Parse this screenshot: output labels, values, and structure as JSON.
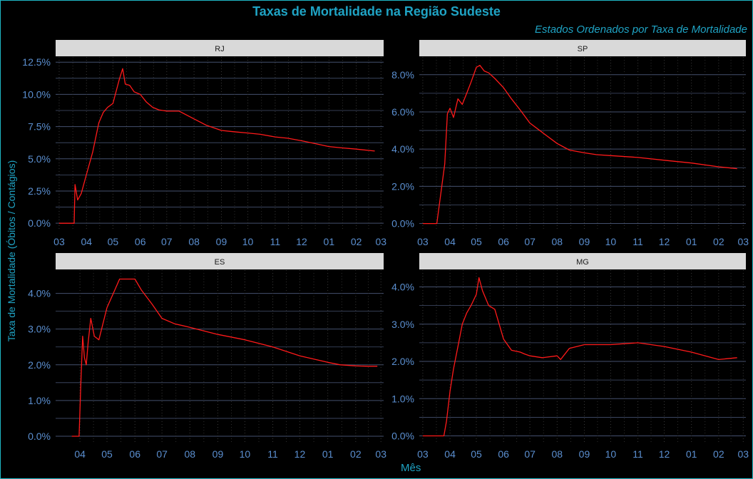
{
  "title": "Taxas de Mortalidade na Região Sudeste",
  "subtitle": "Estados Ordenados por Taxa de Mortalidade",
  "xlabel": "Mês",
  "ylabel": "Taxa de Mortalidade (Óbitos / Contágios)",
  "colors": {
    "background": "#000000",
    "frame": "#1fb7c4",
    "title": "#1fa3c4",
    "strip_bg": "#d9d9d9",
    "strip_text": "#1a1a1a",
    "grid_major": "#44506e",
    "grid_minor": "#3a3a3a",
    "tick_label": "#5b8fd0",
    "line": "#ff1a1a"
  },
  "chart_data": [
    {
      "type": "line",
      "panel": "RJ",
      "x_tick_labels": [
        "03",
        "04",
        "05",
        "06",
        "07",
        "08",
        "09",
        "10",
        "11",
        "12",
        "01",
        "02",
        "03"
      ],
      "x_tick_positions": [
        "2020-03-01",
        "2020-04-01",
        "2020-05-01",
        "2020-06-01",
        "2020-07-01",
        "2020-08-01",
        "2020-09-01",
        "2020-10-01",
        "2020-11-01",
        "2020-12-01",
        "2021-01-01",
        "2021-02-01",
        "2021-03-01"
      ],
      "x_range": [
        "2020-02-26",
        "2021-03-04"
      ],
      "y_ticks": [
        0,
        2.5,
        5,
        7.5,
        10,
        12.5
      ],
      "y_tick_labels": [
        "0.0%",
        "2.5%",
        "5.0%",
        "7.5%",
        "10.0%",
        "12.5%"
      ],
      "ylim": [
        -0.6,
        12.9
      ],
      "grid": true,
      "series": [
        {
          "x": [
            "2020-03-01",
            "2020-03-18",
            "2020-03-19",
            "2020-03-22",
            "2020-03-26",
            "2020-04-01",
            "2020-04-08",
            "2020-04-15",
            "2020-04-20",
            "2020-04-25",
            "2020-05-01",
            "2020-05-08",
            "2020-05-12",
            "2020-05-15",
            "2020-05-20",
            "2020-05-25",
            "2020-06-01",
            "2020-06-08",
            "2020-06-15",
            "2020-06-22",
            "2020-07-01",
            "2020-07-15",
            "2020-08-01",
            "2020-08-15",
            "2020-09-01",
            "2020-09-15",
            "2020-10-01",
            "2020-10-15",
            "2020-11-01",
            "2020-11-15",
            "2020-12-01",
            "2020-12-15",
            "2021-01-01",
            "2021-01-15",
            "2021-02-01",
            "2021-02-15",
            "2021-02-22"
          ],
          "y": [
            0,
            0,
            3.0,
            1.8,
            2.3,
            3.8,
            5.5,
            7.8,
            8.6,
            9.0,
            9.3,
            11.1,
            12.0,
            10.8,
            10.7,
            10.2,
            10.0,
            9.4,
            9.0,
            8.8,
            8.7,
            8.7,
            8.1,
            7.6,
            7.2,
            7.1,
            7.0,
            6.9,
            6.7,
            6.6,
            6.4,
            6.2,
            5.95,
            5.85,
            5.75,
            5.65,
            5.6
          ]
        }
      ]
    },
    {
      "type": "line",
      "panel": "SP",
      "x_tick_labels": [
        "03",
        "04",
        "05",
        "06",
        "07",
        "08",
        "09",
        "10",
        "11",
        "12",
        "01",
        "02",
        "03"
      ],
      "x_tick_positions": [
        "2020-03-01",
        "2020-04-01",
        "2020-05-01",
        "2020-06-01",
        "2020-07-01",
        "2020-08-01",
        "2020-09-01",
        "2020-10-01",
        "2020-11-01",
        "2020-12-01",
        "2021-01-01",
        "2021-02-01",
        "2021-03-01"
      ],
      "x_range": [
        "2020-02-26",
        "2021-03-04"
      ],
      "y_ticks": [
        0,
        2,
        4,
        6,
        8
      ],
      "y_tick_labels": [
        "0.0%",
        "2.0%",
        "4.0%",
        "6.0%",
        "8.0%"
      ],
      "ylim": [
        -0.4,
        8.95
      ],
      "grid": true,
      "series": [
        {
          "x": [
            "2020-03-01",
            "2020-03-17",
            "2020-03-26",
            "2020-03-29",
            "2020-04-01",
            "2020-04-05",
            "2020-04-10",
            "2020-04-15",
            "2020-04-20",
            "2020-04-25",
            "2020-05-01",
            "2020-05-05",
            "2020-05-10",
            "2020-05-15",
            "2020-05-22",
            "2020-06-01",
            "2020-06-10",
            "2020-06-20",
            "2020-07-01",
            "2020-07-15",
            "2020-08-01",
            "2020-08-15",
            "2020-09-01",
            "2020-09-15",
            "2020-10-01",
            "2020-11-01",
            "2020-12-01",
            "2021-01-01",
            "2021-02-01",
            "2021-02-22"
          ],
          "y": [
            0,
            0,
            3.2,
            5.9,
            6.2,
            5.7,
            6.7,
            6.4,
            7.0,
            7.6,
            8.4,
            8.5,
            8.2,
            8.1,
            7.8,
            7.3,
            6.7,
            6.1,
            5.4,
            4.9,
            4.3,
            3.95,
            3.8,
            3.7,
            3.65,
            3.55,
            3.4,
            3.25,
            3.05,
            2.95
          ]
        }
      ]
    },
    {
      "type": "line",
      "panel": "ES",
      "x_tick_labels": [
        "04",
        "05",
        "06",
        "07",
        "08",
        "09",
        "10",
        "11",
        "12",
        "01",
        "02",
        "03"
      ],
      "x_tick_positions": [
        "2020-04-01",
        "2020-05-01",
        "2020-06-01",
        "2020-07-01",
        "2020-08-01",
        "2020-09-01",
        "2020-10-01",
        "2020-11-01",
        "2020-12-01",
        "2021-01-01",
        "2021-02-01",
        "2021-03-01"
      ],
      "x_range": [
        "2020-03-05",
        "2021-03-04"
      ],
      "y_ticks": [
        0,
        1,
        2,
        3,
        4
      ],
      "y_tick_labels": [
        "0.0%",
        "1.0%",
        "2.0%",
        "3.0%",
        "4.0%"
      ],
      "ylim": [
        -0.2,
        4.65
      ],
      "grid": true,
      "series": [
        {
          "x": [
            "2020-03-23",
            "2020-03-31",
            "2020-04-02",
            "2020-04-04",
            "2020-04-06",
            "2020-04-08",
            "2020-04-10",
            "2020-04-13",
            "2020-04-17",
            "2020-04-22",
            "2020-05-01",
            "2020-05-08",
            "2020-05-15",
            "2020-05-22",
            "2020-06-01",
            "2020-06-08",
            "2020-06-20",
            "2020-07-01",
            "2020-07-15",
            "2020-08-01",
            "2020-09-01",
            "2020-10-01",
            "2020-11-01",
            "2020-12-01",
            "2021-01-01",
            "2021-01-15",
            "2021-02-01",
            "2021-02-15",
            "2021-02-25"
          ],
          "y": [
            0,
            0,
            1.5,
            2.8,
            2.2,
            2.0,
            2.6,
            3.3,
            2.8,
            2.7,
            3.6,
            4.0,
            4.4,
            4.4,
            4.4,
            4.1,
            3.7,
            3.3,
            3.15,
            3.05,
            2.85,
            2.7,
            2.5,
            2.25,
            2.07,
            2.0,
            1.97,
            1.96,
            1.96
          ]
        }
      ]
    },
    {
      "type": "line",
      "panel": "MG",
      "x_tick_labels": [
        "03",
        "04",
        "05",
        "06",
        "07",
        "08",
        "09",
        "10",
        "11",
        "12",
        "01",
        "02",
        "03"
      ],
      "x_tick_positions": [
        "2020-03-01",
        "2020-04-01",
        "2020-05-01",
        "2020-06-01",
        "2020-07-01",
        "2020-08-01",
        "2020-09-01",
        "2020-10-01",
        "2020-11-01",
        "2020-12-01",
        "2021-01-01",
        "2021-02-01",
        "2021-03-01"
      ],
      "x_range": [
        "2020-02-26",
        "2021-03-04"
      ],
      "y_ticks": [
        0,
        1,
        2,
        3,
        4
      ],
      "y_tick_labels": [
        "0.0%",
        "1.0%",
        "2.0%",
        "3.0%",
        "4.0%"
      ],
      "ylim": [
        -0.2,
        4.45
      ],
      "grid": true,
      "series": [
        {
          "x": [
            "2020-03-01",
            "2020-03-25",
            "2020-03-28",
            "2020-04-01",
            "2020-04-05",
            "2020-04-10",
            "2020-04-15",
            "2020-04-20",
            "2020-04-25",
            "2020-05-01",
            "2020-05-04",
            "2020-05-08",
            "2020-05-15",
            "2020-05-22",
            "2020-06-01",
            "2020-06-10",
            "2020-06-20",
            "2020-06-25",
            "2020-07-01",
            "2020-07-15",
            "2020-08-01",
            "2020-08-05",
            "2020-08-15",
            "2020-09-01",
            "2020-10-01",
            "2020-11-01",
            "2020-12-01",
            "2021-01-01",
            "2021-02-01",
            "2021-02-22"
          ],
          "y": [
            0,
            0,
            0.4,
            1.2,
            1.8,
            2.4,
            3.0,
            3.3,
            3.5,
            3.8,
            4.25,
            3.9,
            3.5,
            3.4,
            2.6,
            2.3,
            2.25,
            2.2,
            2.15,
            2.1,
            2.15,
            2.05,
            2.35,
            2.45,
            2.45,
            2.5,
            2.4,
            2.25,
            2.05,
            2.1
          ]
        }
      ]
    }
  ]
}
